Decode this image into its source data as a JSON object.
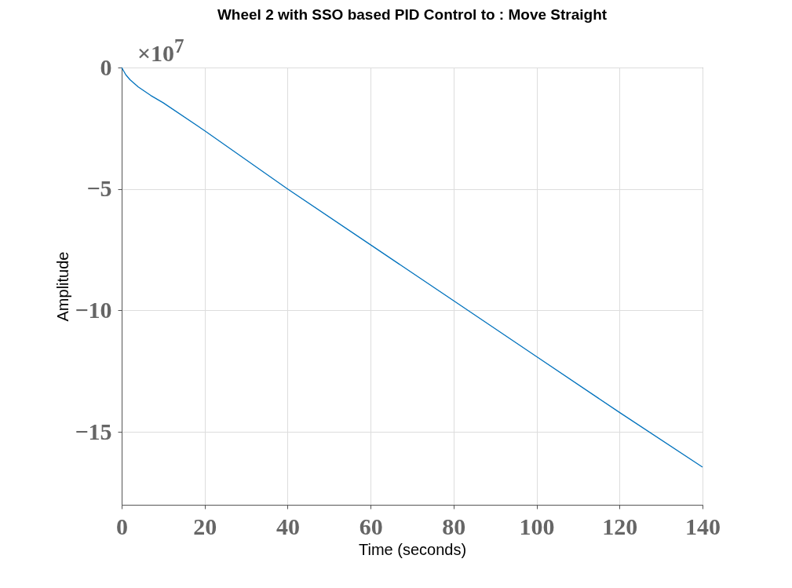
{
  "chart_data": {
    "type": "line",
    "title": "Wheel 2 with SSO based PID Control to : Move Straight",
    "xlabel": "Time (seconds)",
    "ylabel": "Amplitude",
    "annotations": [
      "×10$^{7}$"
    ],
    "x": [
      0,
      1,
      2,
      4,
      7,
      10,
      20,
      40,
      60,
      80,
      100,
      120,
      140
    ],
    "series": [
      {
        "color": "#0072bd",
        "values": [
          0,
          -0.3,
          -0.5,
          -0.8,
          -1.15,
          -1.45,
          -2.6,
          -5,
          -7.3,
          -9.6,
          -11.9,
          -14.2,
          -16.45
        ]
      }
    ],
    "xlim": [
      0,
      140
    ],
    "xticks": [
      0,
      20,
      40,
      60,
      80,
      100,
      120,
      140
    ],
    "ylim": [
      -18,
      0
    ],
    "yticks": [
      0,
      -5,
      -10,
      -15
    ],
    "grid": true,
    "marker": "none",
    "line_style": "solid"
  }
}
